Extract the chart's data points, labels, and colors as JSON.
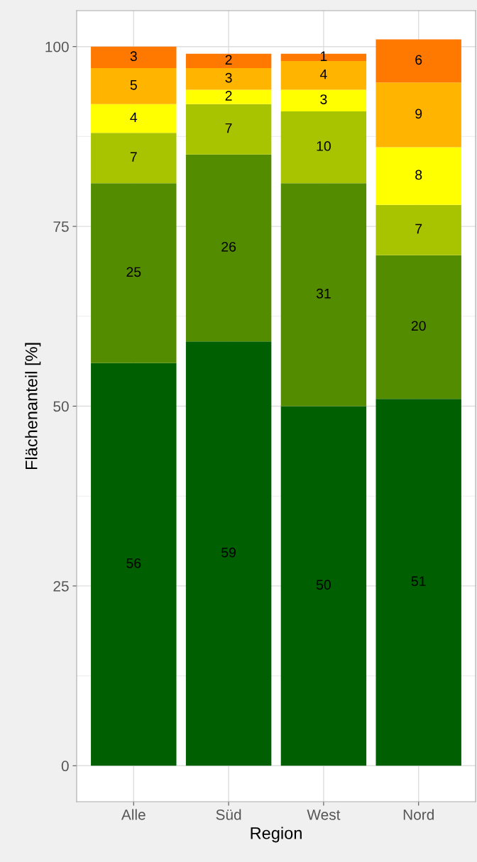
{
  "chart_data": {
    "type": "bar",
    "stacked": true,
    "xlabel": "Region",
    "ylabel": "Flächenanteil [%]",
    "categories": [
      "Alle",
      "Süd",
      "West",
      "Nord"
    ],
    "series": [
      {
        "color": "#005f00",
        "values": [
          56,
          59,
          50,
          51
        ]
      },
      {
        "color": "#548c00",
        "values": [
          25,
          26,
          31,
          20
        ]
      },
      {
        "color": "#a8c400",
        "values": [
          7,
          7,
          10,
          7
        ]
      },
      {
        "color": "#ffff00",
        "values": [
          4,
          2,
          3,
          8
        ]
      },
      {
        "color": "#ffb400",
        "values": [
          5,
          3,
          4,
          9
        ]
      },
      {
        "color": "#ff7800",
        "values": [
          3,
          2,
          1,
          6
        ]
      }
    ],
    "ylim": [
      -5,
      105
    ],
    "yticks": [
      0,
      25,
      50,
      75,
      100
    ],
    "grid": true,
    "data_labels": true
  }
}
